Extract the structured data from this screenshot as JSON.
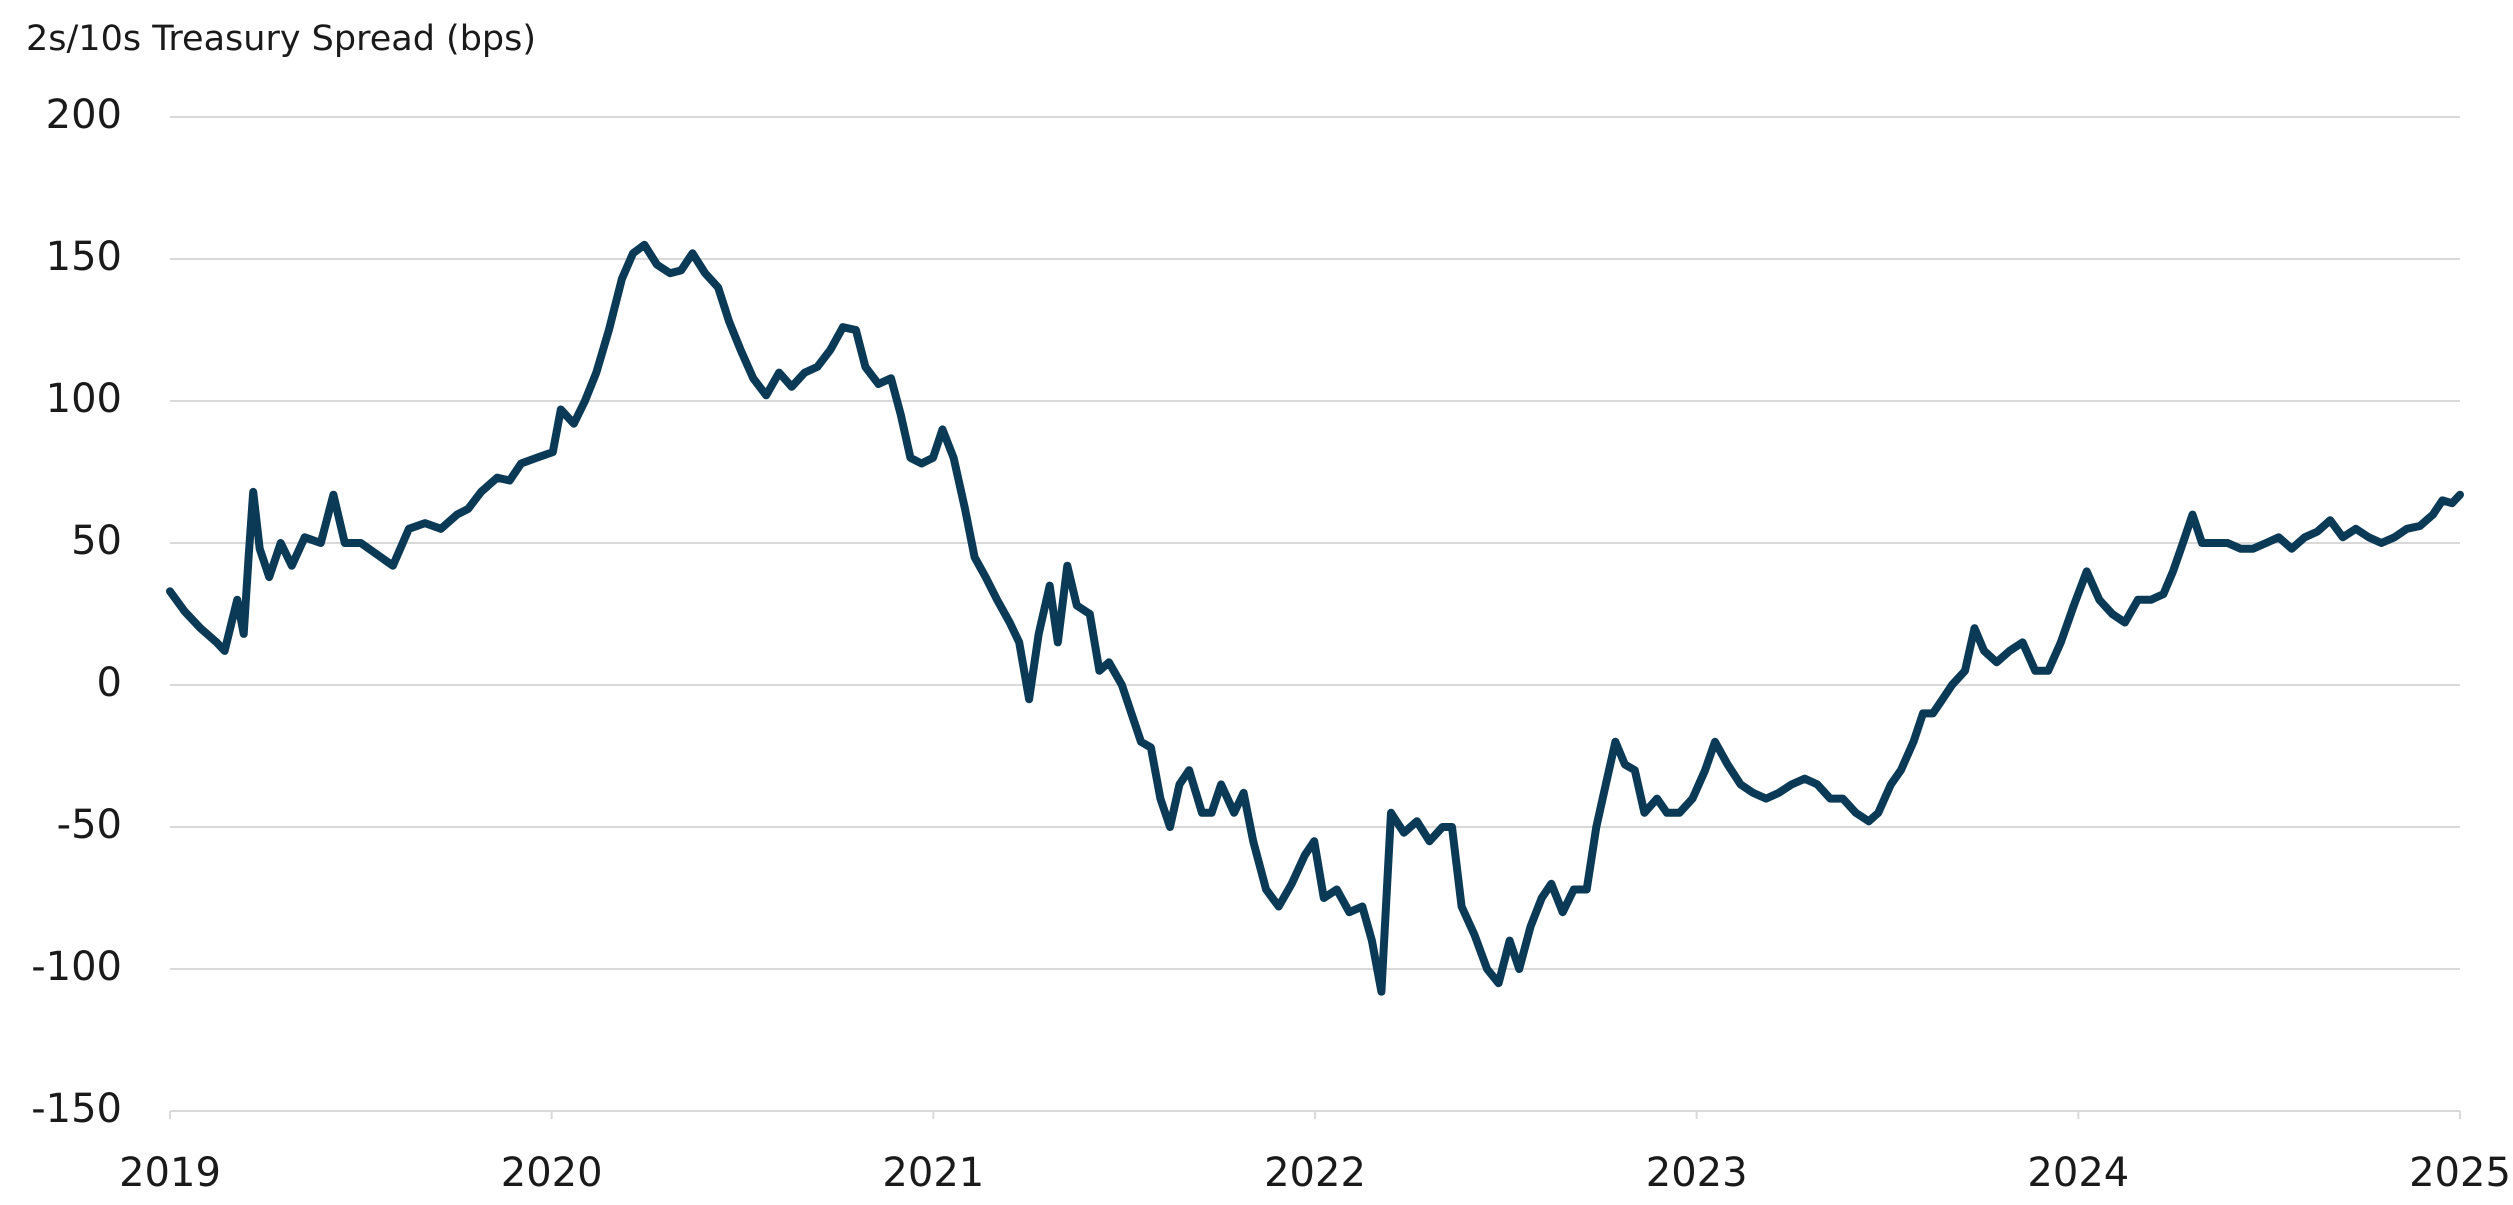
{
  "chart_data": {
    "type": "line",
    "title": "2s/10s Treasury Spread (bps)",
    "x": [
      2019.0,
      2019.038,
      2019.08,
      2019.122,
      2019.143,
      2019.176,
      2019.193,
      2019.206,
      2019.218,
      2019.235,
      2019.26,
      2019.29,
      2019.319,
      2019.353,
      2019.395,
      2019.428,
      2019.458,
      2019.5,
      2019.542,
      2019.584,
      2019.626,
      2019.668,
      2019.71,
      2019.752,
      2019.781,
      2019.815,
      2019.857,
      2019.89,
      2019.92,
      2019.961,
      2020.003,
      2020.024,
      2020.058,
      2020.087,
      2020.117,
      2020.15,
      2020.184,
      2020.213,
      2020.243,
      2020.276,
      2020.31,
      2020.339,
      2020.369,
      2020.402,
      2020.436,
      2020.465,
      2020.495,
      2020.528,
      2020.562,
      2020.596,
      2020.629,
      2020.663,
      2020.696,
      2020.73,
      2020.763,
      2020.797,
      2020.822,
      2020.856,
      2020.889,
      2020.915,
      2020.94,
      2020.969,
      2020.999,
      2021.024,
      2021.053,
      2021.083,
      2021.108,
      2021.137,
      2021.167,
      2021.2,
      2021.225,
      2021.251,
      2021.276,
      2021.305,
      2021.326,
      2021.351,
      2021.376,
      2021.41,
      2021.435,
      2021.46,
      2021.494,
      2021.519,
      2021.544,
      2021.57,
      2021.595,
      2021.62,
      2021.645,
      2021.67,
      2021.704,
      2021.729,
      2021.754,
      2021.788,
      2021.813,
      2021.838,
      2021.872,
      2021.905,
      2021.939,
      2021.973,
      2021.998,
      2022.023,
      2022.057,
      2022.09,
      2022.124,
      2022.149,
      2022.174,
      2022.199,
      2022.233,
      2022.267,
      2022.3,
      2022.334,
      2022.359,
      2022.384,
      2022.418,
      2022.451,
      2022.481,
      2022.51,
      2022.535,
      2022.565,
      2022.594,
      2022.619,
      2022.649,
      2022.678,
      2022.712,
      2022.737,
      2022.762,
      2022.787,
      2022.812,
      2022.838,
      2022.863,
      2022.896,
      2022.922,
      2022.955,
      2022.989,
      2023.022,
      2023.048,
      2023.081,
      2023.115,
      2023.148,
      2023.182,
      2023.215,
      2023.249,
      2023.283,
      2023.316,
      2023.35,
      2023.383,
      2023.417,
      2023.451,
      2023.476,
      2023.509,
      2023.535,
      2023.568,
      2023.593,
      2023.619,
      2023.644,
      2023.669,
      2023.703,
      2023.728,
      2023.753,
      2023.786,
      2023.82,
      2023.854,
      2023.887,
      2023.921,
      2023.954,
      2023.988,
      2024.022,
      2024.055,
      2024.089,
      2024.122,
      2024.156,
      2024.19,
      2024.223,
      2024.248,
      2024.274,
      2024.299,
      2024.324,
      2024.358,
      2024.391,
      2024.425,
      2024.458,
      2024.492,
      2024.525,
      2024.559,
      2024.593,
      2024.626,
      2024.66,
      2024.693,
      2024.727,
      2024.761,
      2024.794,
      2024.828,
      2024.861,
      2024.895,
      2024.929,
      2024.954,
      2024.979,
      2025.0
    ],
    "values": [
      33,
      26,
      20,
      15,
      12,
      30,
      18,
      45,
      68,
      48,
      38,
      50,
      42,
      52,
      50,
      67,
      50,
      50,
      46,
      42,
      55,
      57,
      55,
      60,
      62,
      68,
      73,
      72,
      78,
      80,
      82,
      97,
      92,
      100,
      110,
      125,
      143,
      152,
      155,
      148,
      145,
      146,
      152,
      145,
      140,
      128,
      118,
      108,
      102,
      110,
      105,
      110,
      112,
      118,
      126,
      125,
      112,
      106,
      108,
      95,
      80,
      78,
      80,
      90,
      80,
      62,
      45,
      38,
      30,
      22,
      15,
      -5,
      18,
      35,
      15,
      42,
      28,
      25,
      5,
      8,
      0,
      -10,
      -20,
      -22,
      -40,
      -50,
      -35,
      -30,
      -45,
      -45,
      -35,
      -45,
      -38,
      -55,
      -72,
      -78,
      -70,
      -60,
      -55,
      -75,
      -72,
      -80,
      -78,
      -90,
      -108,
      -45,
      -52,
      -48,
      -55,
      -50,
      -50,
      -78,
      -88,
      -100,
      -105,
      -90,
      -100,
      -85,
      -75,
      -70,
      -80,
      -72,
      -72,
      -50,
      -35,
      -20,
      -28,
      -30,
      -45,
      -40,
      -45,
      -45,
      -40,
      -30,
      -20,
      -28,
      -35,
      -38,
      -40,
      -38,
      -35,
      -33,
      -35,
      -40,
      -40,
      -45,
      -48,
      -45,
      -35,
      -30,
      -20,
      -10,
      -10,
      -5,
      0,
      5,
      20,
      12,
      8,
      12,
      15,
      5,
      5,
      15,
      28,
      40,
      30,
      25,
      22,
      30,
      30,
      32,
      40,
      50,
      60,
      50,
      50,
      50,
      48,
      48,
      50,
      52,
      48,
      52,
      54,
      58,
      52,
      55,
      52,
      50,
      52,
      55,
      56,
      60,
      65,
      64,
      67
    ],
    "color": "#0b3a57",
    "xlim": [
      2019,
      2025
    ],
    "xticks": [
      2019,
      2020,
      2021,
      2022,
      2023,
      2024,
      2025
    ],
    "ylim": [
      -150,
      200
    ],
    "yticks": [
      -150,
      -100,
      -50,
      0,
      50,
      100,
      150,
      200
    ],
    "grid": true
  }
}
